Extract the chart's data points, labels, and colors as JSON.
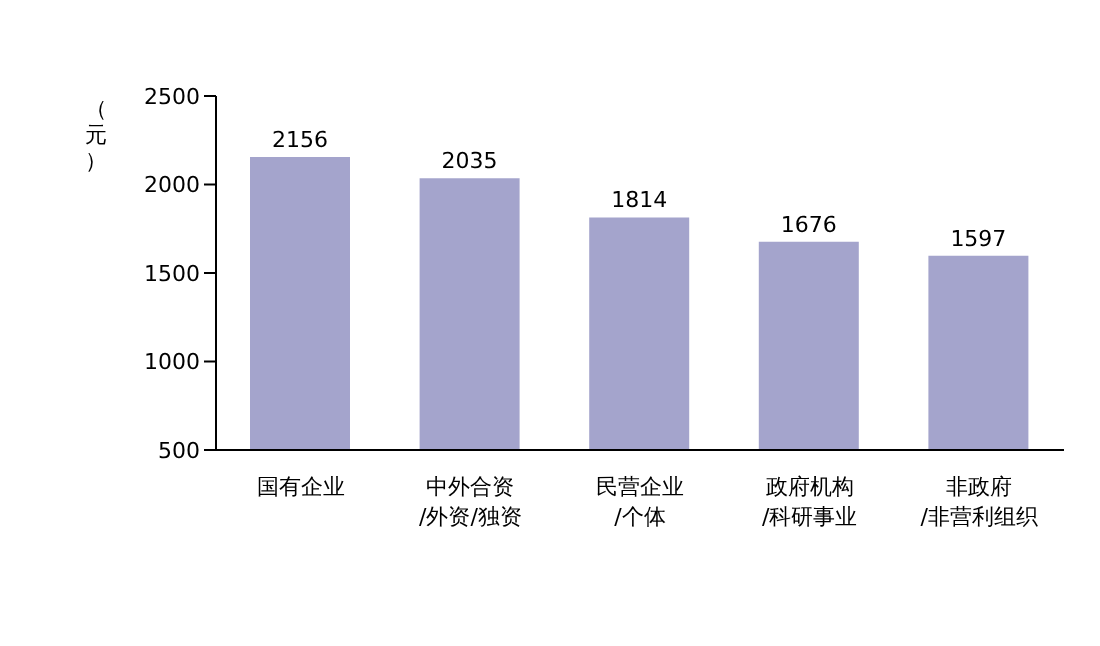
{
  "chart_data": {
    "type": "bar",
    "ylabel": "（元）",
    "categories": [
      "国有企业",
      "中外合资\n/外资/独资",
      "民营企业\n/个体",
      "政府机构\n/科研事业",
      "非政府\n/非营利组织"
    ],
    "values": [
      2156,
      2035,
      1814,
      1676,
      1597
    ],
    "color": "#a4a4cc",
    "ylim": [
      500,
      2500
    ],
    "yticks": [
      500,
      1000,
      1500,
      2000,
      2500
    ],
    "grid": false,
    "data_labels": true
  }
}
